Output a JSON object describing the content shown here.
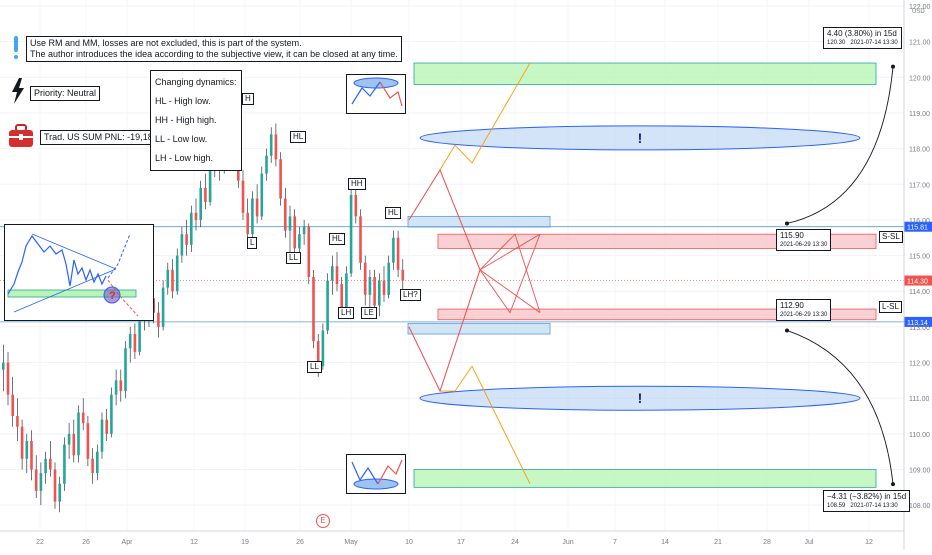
{
  "notes": {
    "system_line1": "Use RM and MM, losses are not excluded, this is part of the system.",
    "system_line2": "The author introduces the idea according to the subjective view, it can be closed at any time.",
    "priority": "Priority: Neutral",
    "pnl": "Trad. US SUM PNL: -19,18.",
    "dynamics_title": "Changing dynamics:",
    "dynamics": [
      "HL - High low.",
      "HH - High high.",
      "LL - Low low.",
      "LH - Low high."
    ]
  },
  "icons": {
    "info": "info-icon",
    "lightning": "lightning-icon",
    "briefcase": "briefcase-icon"
  },
  "colors": {
    "up": "#26a69a",
    "down": "#ef5350",
    "wick": "#131722",
    "green_zone": "#b8f5b5",
    "red_zone": "#f7c6c9",
    "blue_zone": "#c7dff5",
    "ellipse": "#9fc3ef",
    "price_badge": "#ef5350",
    "level_badge": "#2962ff"
  },
  "chart_data": {
    "type": "candlestick",
    "y_unit": "USD",
    "ylim": [
      107.5,
      122.0
    ],
    "y_ticks": [
      108,
      109,
      110,
      111,
      112,
      113,
      114,
      115,
      116,
      117,
      118,
      119,
      120,
      121,
      122
    ],
    "x_ticks": [
      "22",
      "26",
      "Apr",
      "12",
      "19",
      "26",
      "May",
      "10",
      "17",
      "24",
      "Jun",
      "7",
      "14",
      "21",
      "28",
      "Jul",
      "12"
    ],
    "last_price": "114.30",
    "levels": [
      {
        "label": "115.81",
        "value": 115.81,
        "tag": "S-SL"
      },
      {
        "label": "113.14",
        "value": 113.14,
        "tag": "L-SL"
      }
    ],
    "swing_labels": [
      {
        "text": "H",
        "date": "2021-04-19",
        "value": 119.6
      },
      {
        "text": "HL",
        "date": "2021-04-26",
        "value": 118.7
      },
      {
        "text": "L",
        "date": "2021-04-20",
        "value": 115.3
      },
      {
        "text": "LL",
        "date": "2021-04-27",
        "value": 114.8
      },
      {
        "text": "HH",
        "date": "2021-05-05",
        "value": 117.4
      },
      {
        "text": "HL",
        "date": "2021-05-02",
        "value": 115.5
      },
      {
        "text": "HL",
        "date": "2021-05-08",
        "value": 116.5
      },
      {
        "text": "LL",
        "date": "2021-04-29",
        "value": 111.7
      },
      {
        "text": "LH",
        "date": "2021-05-04",
        "value": 113.5
      },
      {
        "text": "LE",
        "date": "2021-05-06",
        "value": 113.5
      },
      {
        "text": "LH?",
        "date": "2021-05-10",
        "value": 114.0
      }
    ],
    "measures": [
      {
        "value": "4.40 (3.80%) in 15d",
        "target": "120.30",
        "date": "2021-07-14 13:30"
      },
      {
        "value": "−4.31 (−3.82%) in 15d",
        "target": "108.59",
        "date": "2021-07-14 13:30"
      }
    ],
    "entries": [
      {
        "price": "115.90",
        "date": "2021-06-29 13:30"
      },
      {
        "price": "112.90",
        "date": "2021-06-29 13:30"
      }
    ],
    "zones": [
      {
        "type": "target-up",
        "top": 120.4,
        "bottom": 119.8
      },
      {
        "type": "short-stop",
        "top": 115.6,
        "bottom": 115.2
      },
      {
        "type": "long-stop",
        "top": 113.5,
        "bottom": 113.2
      },
      {
        "type": "target-down",
        "top": 109.0,
        "bottom": 108.5
      },
      {
        "type": "level-up",
        "top": 116.1,
        "bottom": 115.8
      },
      {
        "type": "level-down",
        "top": 113.1,
        "bottom": 112.8
      }
    ],
    "ellipse_marks": [
      "!",
      "!"
    ],
    "event_marker": "E",
    "inset_marker": "?",
    "candles": [
      [
        111.8,
        112.5,
        111.2,
        112.0
      ],
      [
        112.0,
        112.3,
        110.8,
        111.1
      ],
      [
        111.1,
        111.6,
        110.2,
        110.5
      ],
      [
        110.5,
        111.0,
        109.8,
        110.2
      ],
      [
        110.2,
        110.4,
        109.0,
        109.3
      ],
      [
        109.3,
        110.0,
        108.9,
        109.8
      ],
      [
        109.8,
        110.1,
        108.7,
        109.0
      ],
      [
        109.0,
        109.4,
        108.2,
        108.4
      ],
      [
        108.4,
        109.2,
        108.0,
        108.9
      ],
      [
        108.9,
        109.5,
        108.6,
        109.3
      ],
      [
        109.3,
        109.8,
        108.8,
        109.0
      ],
      [
        109.0,
        109.2,
        107.9,
        108.1
      ],
      [
        108.1,
        108.8,
        107.8,
        108.6
      ],
      [
        108.6,
        109.9,
        108.4,
        109.7
      ],
      [
        109.7,
        110.3,
        109.3,
        110.0
      ],
      [
        110.0,
        110.4,
        109.2,
        109.4
      ],
      [
        109.4,
        110.8,
        109.2,
        110.6
      ],
      [
        110.6,
        111.0,
        110.1,
        110.3
      ],
      [
        110.3,
        110.5,
        109.1,
        109.3
      ],
      [
        109.3,
        109.6,
        108.6,
        108.9
      ],
      [
        108.9,
        109.7,
        108.7,
        109.5
      ],
      [
        109.5,
        110.6,
        109.3,
        110.4
      ],
      [
        110.4,
        110.7,
        109.8,
        110.0
      ],
      [
        110.0,
        111.3,
        109.9,
        111.1
      ],
      [
        111.1,
        111.8,
        110.8,
        111.5
      ],
      [
        111.5,
        111.8,
        110.9,
        111.2
      ],
      [
        111.2,
        112.6,
        111.0,
        112.4
      ],
      [
        112.4,
        113.0,
        112.0,
        112.8
      ],
      [
        112.8,
        113.1,
        112.1,
        112.3
      ],
      [
        112.3,
        113.6,
        112.2,
        113.4
      ],
      [
        113.4,
        113.9,
        112.9,
        113.2
      ],
      [
        113.2,
        114.0,
        113.0,
        113.8
      ],
      [
        113.8,
        114.1,
        113.1,
        113.4
      ],
      [
        113.4,
        113.7,
        112.7,
        113.0
      ],
      [
        113.0,
        114.3,
        112.9,
        114.1
      ],
      [
        114.1,
        114.8,
        113.9,
        114.6
      ],
      [
        114.6,
        114.9,
        113.8,
        114.0
      ],
      [
        114.0,
        115.2,
        113.9,
        115.0
      ],
      [
        115.0,
        115.8,
        114.8,
        115.6
      ],
      [
        115.6,
        116.0,
        115.0,
        115.3
      ],
      [
        115.3,
        116.4,
        115.1,
        116.2
      ],
      [
        116.2,
        116.6,
        115.7,
        116.0
      ],
      [
        116.0,
        117.1,
        115.8,
        116.9
      ],
      [
        116.9,
        117.3,
        116.3,
        116.5
      ],
      [
        116.5,
        117.8,
        116.4,
        117.6
      ],
      [
        117.6,
        118.2,
        117.2,
        117.9
      ],
      [
        117.9,
        118.3,
        117.1,
        117.4
      ],
      [
        117.4,
        118.5,
        117.3,
        118.3
      ],
      [
        118.3,
        119.0,
        118.0,
        118.8
      ],
      [
        118.8,
        119.0,
        117.9,
        118.1
      ],
      [
        118.1,
        118.4,
        116.9,
        117.1
      ],
      [
        117.1,
        117.4,
        116.0,
        116.2
      ],
      [
        116.2,
        116.6,
        115.4,
        115.6
      ],
      [
        115.6,
        116.8,
        115.5,
        116.6
      ],
      [
        116.6,
        117.0,
        115.9,
        116.1
      ],
      [
        116.1,
        117.5,
        116.0,
        117.3
      ],
      [
        117.3,
        118.0,
        117.1,
        117.8
      ],
      [
        117.8,
        118.6,
        117.6,
        118.4
      ],
      [
        118.4,
        118.7,
        117.5,
        117.7
      ],
      [
        117.7,
        117.9,
        116.4,
        116.6
      ],
      [
        116.6,
        116.9,
        115.5,
        115.7
      ],
      [
        115.7,
        116.4,
        115.1,
        116.1
      ],
      [
        116.1,
        116.3,
        115.0,
        115.2
      ],
      [
        115.2,
        115.8,
        114.9,
        115.6
      ],
      [
        115.6,
        116.0,
        115.3,
        115.8
      ],
      [
        115.8,
        115.9,
        114.2,
        114.4
      ],
      [
        114.4,
        114.6,
        112.4,
        112.6
      ],
      [
        112.6,
        112.8,
        111.6,
        111.9
      ],
      [
        111.9,
        113.1,
        111.8,
        112.9
      ],
      [
        112.9,
        114.5,
        112.8,
        114.3
      ],
      [
        114.3,
        115.0,
        113.9,
        114.7
      ],
      [
        114.7,
        115.1,
        114.0,
        114.2
      ],
      [
        114.2,
        114.4,
        113.3,
        113.5
      ],
      [
        113.5,
        114.7,
        113.4,
        114.5
      ],
      [
        114.5,
        116.9,
        114.4,
        116.7
      ],
      [
        116.7,
        117.1,
        115.9,
        116.1
      ],
      [
        116.1,
        116.3,
        114.6,
        114.8
      ],
      [
        114.8,
        115.0,
        113.6,
        113.9
      ],
      [
        113.9,
        114.6,
        113.5,
        114.4
      ],
      [
        114.4,
        114.6,
        113.4,
        113.6
      ],
      [
        113.6,
        114.5,
        113.3,
        114.3
      ],
      [
        114.3,
        114.7,
        113.7,
        113.9
      ],
      [
        113.9,
        115.0,
        113.8,
        114.8
      ],
      [
        114.8,
        115.7,
        114.6,
        115.5
      ],
      [
        115.5,
        115.7,
        114.4,
        114.6
      ],
      [
        114.6,
        114.9,
        113.9,
        114.3
      ]
    ]
  }
}
